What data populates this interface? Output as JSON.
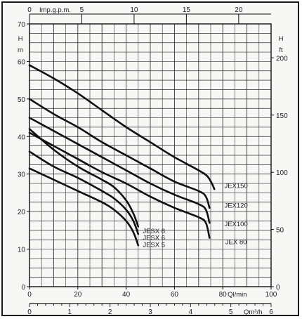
{
  "chart_data": {
    "type": "line",
    "title": "",
    "axes": {
      "left": {
        "label_top": "H",
        "label_bottom": "m",
        "min": 0,
        "max": 70,
        "ticks": [
          0,
          10,
          20,
          30,
          40,
          50,
          60,
          70
        ],
        "tick_labels": [
          "0",
          "10",
          "20",
          "30",
          "40",
          "50",
          "60",
          "70"
        ]
      },
      "right": {
        "label_top": "H",
        "label_bottom": "ft",
        "min": 0,
        "max": 229.7,
        "ticks": [
          0,
          50,
          100,
          150,
          200
        ],
        "tick_labels": [
          "0",
          "50",
          "100",
          "150",
          "200"
        ]
      },
      "top": {
        "label": "Imp.g.p.m.",
        "min": 0,
        "max": 23.1,
        "ticks": [
          0,
          5,
          10,
          15,
          20
        ],
        "tick_labels": [
          "0",
          "5",
          "10",
          "15",
          "20"
        ]
      },
      "bottom1": {
        "label": "Ql/min",
        "min": 0,
        "max": 100,
        "ticks": [
          0,
          20,
          40,
          60,
          80,
          100
        ],
        "tick_labels": [
          "0",
          "20",
          "40",
          "60",
          "80",
          "100"
        ]
      },
      "bottom2": {
        "label": "Qm³/h",
        "min": 0,
        "max": 6,
        "ticks": [
          0,
          1,
          2,
          3,
          4,
          5,
          6
        ],
        "tick_labels": [
          "0",
          "1",
          "2",
          "3",
          "4",
          "5",
          "6"
        ]
      }
    },
    "grid": true,
    "series": [
      {
        "name": "JEX150",
        "x": [
          0,
          10,
          20,
          30,
          40,
          50,
          60,
          70,
          73.5,
          75.5,
          76.5
        ],
        "y": [
          59,
          55.5,
          51.5,
          47,
          42.5,
          38.5,
          34.5,
          31,
          29.5,
          27.5,
          26
        ]
      },
      {
        "name": "JEX120",
        "x": [
          0,
          10,
          20,
          30,
          40,
          50,
          60,
          70,
          73,
          74.5
        ],
        "y": [
          50,
          46,
          42.5,
          38.5,
          35,
          31.5,
          28,
          25.5,
          24,
          21
        ]
      },
      {
        "name": "JEX100",
        "x": [
          0,
          10,
          20,
          30,
          40,
          50,
          60,
          70,
          73,
          74.5
        ],
        "y": [
          45,
          41.5,
          38,
          34.5,
          31,
          27.5,
          24.5,
          22,
          20.5,
          17
        ]
      },
      {
        "name": "JEX 80",
        "x": [
          0,
          10,
          20,
          30,
          40,
          50,
          60,
          70,
          73,
          74.5
        ],
        "y": [
          41,
          37.5,
          34,
          30.5,
          27.5,
          24,
          21,
          18.5,
          17,
          13
        ]
      },
      {
        "name": "JESX 8",
        "x": [
          0,
          10,
          20,
          30,
          35,
          40,
          43,
          45
        ],
        "y": [
          42,
          36.5,
          32,
          28.5,
          26.5,
          23,
          19.5,
          16
        ]
      },
      {
        "name": "JESX 6",
        "x": [
          0,
          10,
          20,
          30,
          35,
          40,
          43,
          45
        ],
        "y": [
          36,
          32,
          29,
          25.5,
          23.5,
          20.5,
          17.5,
          14
        ]
      },
      {
        "name": "JESX 5",
        "x": [
          0,
          10,
          20,
          30,
          35,
          40,
          43,
          45
        ],
        "y": [
          31.5,
          28.5,
          25.5,
          22.5,
          20.5,
          17.5,
          14.5,
          11
        ]
      }
    ],
    "curve_labels": [
      "JEX150",
      "JEX120",
      "JEX100",
      "JEX 80",
      "JESX 8",
      "JESX 6",
      "JESX 5"
    ],
    "x_grid_step_lmin": 5,
    "y_grid_step_m": 2.5
  }
}
